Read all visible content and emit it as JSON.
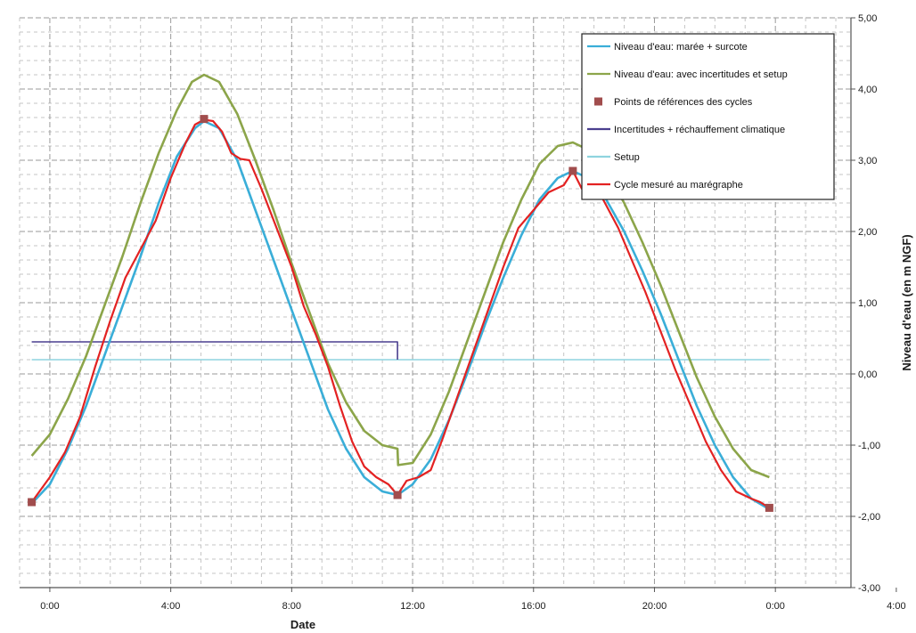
{
  "chart_data": {
    "type": "line",
    "xlabel": "Date",
    "ylabel": "Niveau d'eau (en m NGF)",
    "ylim": [
      -3,
      5
    ],
    "y_ticks": [
      "5,00",
      "4,00",
      "3,00",
      "2,00",
      "1,00",
      "0,00",
      "-1,00",
      "-2,00",
      "-3,00"
    ],
    "x_range_hours": [
      -1,
      26.5
    ],
    "x_ticks": [
      {
        "hour": 0,
        "label": "0:00"
      },
      {
        "hour": 4,
        "label": "4:00"
      },
      {
        "hour": 8,
        "label": "8:00"
      },
      {
        "hour": 12,
        "label": "12:00"
      },
      {
        "hour": 16,
        "label": "16:00"
      },
      {
        "hour": 20,
        "label": "20:00"
      },
      {
        "hour": 24,
        "label": "0:00"
      },
      {
        "hour": 28,
        "label": "4:00"
      },
      {
        "hour": 32,
        "label": "8:00"
      }
    ],
    "grid": true,
    "legend_position": "top-right",
    "series": [
      {
        "name": "Niveau d'eau: marée + surcote",
        "color": "#3aaed8",
        "kind": "line",
        "points": [
          [
            -0.6,
            -1.82
          ],
          [
            0,
            -1.55
          ],
          [
            0.6,
            -1.05
          ],
          [
            1.2,
            -0.45
          ],
          [
            1.8,
            0.25
          ],
          [
            2.4,
            0.95
          ],
          [
            3,
            1.65
          ],
          [
            3.6,
            2.4
          ],
          [
            4.2,
            3.05
          ],
          [
            4.8,
            3.45
          ],
          [
            5.1,
            3.55
          ],
          [
            5.6,
            3.45
          ],
          [
            6.2,
            3.0
          ],
          [
            6.8,
            2.3
          ],
          [
            7.4,
            1.6
          ],
          [
            8,
            0.9
          ],
          [
            8.6,
            0.2
          ],
          [
            9.2,
            -0.5
          ],
          [
            9.8,
            -1.05
          ],
          [
            10.4,
            -1.45
          ],
          [
            11,
            -1.65
          ],
          [
            11.5,
            -1.7
          ],
          [
            12,
            -1.55
          ],
          [
            12.6,
            -1.2
          ],
          [
            13.2,
            -0.65
          ],
          [
            13.8,
            0.0
          ],
          [
            14.4,
            0.7
          ],
          [
            15,
            1.35
          ],
          [
            15.6,
            1.95
          ],
          [
            16.2,
            2.45
          ],
          [
            16.8,
            2.75
          ],
          [
            17.3,
            2.85
          ],
          [
            17.8,
            2.75
          ],
          [
            18.4,
            2.45
          ],
          [
            19,
            2.0
          ],
          [
            19.6,
            1.45
          ],
          [
            20.2,
            0.85
          ],
          [
            20.8,
            0.2
          ],
          [
            21.4,
            -0.45
          ],
          [
            22,
            -1.0
          ],
          [
            22.6,
            -1.45
          ],
          [
            23.2,
            -1.75
          ],
          [
            23.8,
            -1.9
          ]
        ]
      },
      {
        "name": "Niveau d'eau: avec incertitudes et setup",
        "color": "#8ca54a",
        "kind": "line",
        "points": [
          [
            -0.6,
            -1.15
          ],
          [
            0,
            -0.85
          ],
          [
            0.6,
            -0.35
          ],
          [
            1.2,
            0.25
          ],
          [
            1.8,
            0.95
          ],
          [
            2.4,
            1.65
          ],
          [
            3,
            2.4
          ],
          [
            3.6,
            3.1
          ],
          [
            4.2,
            3.7
          ],
          [
            4.7,
            4.1
          ],
          [
            5.1,
            4.2
          ],
          [
            5.6,
            4.1
          ],
          [
            6.2,
            3.65
          ],
          [
            6.8,
            3.0
          ],
          [
            7.4,
            2.3
          ],
          [
            8,
            1.55
          ],
          [
            8.6,
            0.85
          ],
          [
            9.2,
            0.15
          ],
          [
            9.8,
            -0.4
          ],
          [
            10.4,
            -0.8
          ],
          [
            11,
            -1.0
          ],
          [
            11.5,
            -1.05
          ],
          [
            11.52,
            -1.28
          ],
          [
            12,
            -1.25
          ],
          [
            12.6,
            -0.85
          ],
          [
            13.2,
            -0.25
          ],
          [
            13.8,
            0.45
          ],
          [
            14.4,
            1.15
          ],
          [
            15,
            1.85
          ],
          [
            15.6,
            2.45
          ],
          [
            16.2,
            2.95
          ],
          [
            16.8,
            3.2
          ],
          [
            17.3,
            3.25
          ],
          [
            17.8,
            3.15
          ],
          [
            18.4,
            2.85
          ],
          [
            19,
            2.4
          ],
          [
            19.6,
            1.85
          ],
          [
            20.2,
            1.25
          ],
          [
            20.8,
            0.6
          ],
          [
            21.4,
            -0.05
          ],
          [
            22,
            -0.6
          ],
          [
            22.6,
            -1.05
          ],
          [
            23.2,
            -1.35
          ],
          [
            23.8,
            -1.45
          ]
        ]
      },
      {
        "name": "Cycle mesuré au marégraphe",
        "color": "#e32222",
        "kind": "line",
        "points": [
          [
            -0.6,
            -1.8
          ],
          [
            0,
            -1.45
          ],
          [
            0.5,
            -1.1
          ],
          [
            1,
            -0.6
          ],
          [
            1.5,
            0.1
          ],
          [
            2,
            0.75
          ],
          [
            2.5,
            1.35
          ],
          [
            3,
            1.75
          ],
          [
            3.5,
            2.15
          ],
          [
            4,
            2.75
          ],
          [
            4.5,
            3.25
          ],
          [
            4.8,
            3.5
          ],
          [
            5.1,
            3.57
          ],
          [
            5.4,
            3.55
          ],
          [
            5.7,
            3.4
          ],
          [
            6,
            3.1
          ],
          [
            6.3,
            3.02
          ],
          [
            6.6,
            3.0
          ],
          [
            7,
            2.6
          ],
          [
            7.5,
            2.05
          ],
          [
            8,
            1.5
          ],
          [
            8.4,
            0.95
          ],
          [
            8.8,
            0.55
          ],
          [
            9.2,
            0.1
          ],
          [
            9.6,
            -0.45
          ],
          [
            10,
            -0.95
          ],
          [
            10.4,
            -1.3
          ],
          [
            10.8,
            -1.45
          ],
          [
            11.2,
            -1.55
          ],
          [
            11.5,
            -1.7
          ],
          [
            11.8,
            -1.5
          ],
          [
            12.2,
            -1.45
          ],
          [
            12.6,
            -1.35
          ],
          [
            13,
            -0.9
          ],
          [
            13.5,
            -0.3
          ],
          [
            14,
            0.3
          ],
          [
            14.5,
            0.9
          ],
          [
            15,
            1.5
          ],
          [
            15.5,
            2.05
          ],
          [
            16,
            2.3
          ],
          [
            16.5,
            2.55
          ],
          [
            17,
            2.65
          ],
          [
            17.3,
            2.85
          ],
          [
            17.6,
            2.6
          ],
          [
            17.9,
            2.75
          ],
          [
            18.3,
            2.45
          ],
          [
            18.8,
            2.05
          ],
          [
            19.3,
            1.55
          ],
          [
            19.7,
            1.15
          ],
          [
            20.2,
            0.6
          ],
          [
            20.7,
            0.05
          ],
          [
            21.2,
            -0.45
          ],
          [
            21.7,
            -0.95
          ],
          [
            22.2,
            -1.35
          ],
          [
            22.7,
            -1.65
          ],
          [
            23.2,
            -1.75
          ],
          [
            23.5,
            -1.8
          ],
          [
            23.8,
            -1.88
          ]
        ]
      },
      {
        "name": "Incertitudes + réchauffement climatique",
        "color": "#4a3f8f",
        "kind": "step",
        "points": [
          [
            -0.6,
            0.45
          ],
          [
            11.5,
            0.45
          ],
          [
            11.5,
            0.2
          ]
        ]
      },
      {
        "name": "Setup",
        "color": "#8fd4df",
        "kind": "line",
        "points": [
          [
            -0.6,
            0.2
          ],
          [
            23.8,
            0.2
          ]
        ]
      },
      {
        "name": "Points de références des cycles",
        "color": "#a14d4d",
        "kind": "markers",
        "points": [
          [
            -0.6,
            -1.8
          ],
          [
            5.1,
            3.58
          ],
          [
            11.5,
            -1.7
          ],
          [
            17.3,
            2.85
          ],
          [
            23.8,
            -1.88
          ]
        ]
      }
    ]
  }
}
